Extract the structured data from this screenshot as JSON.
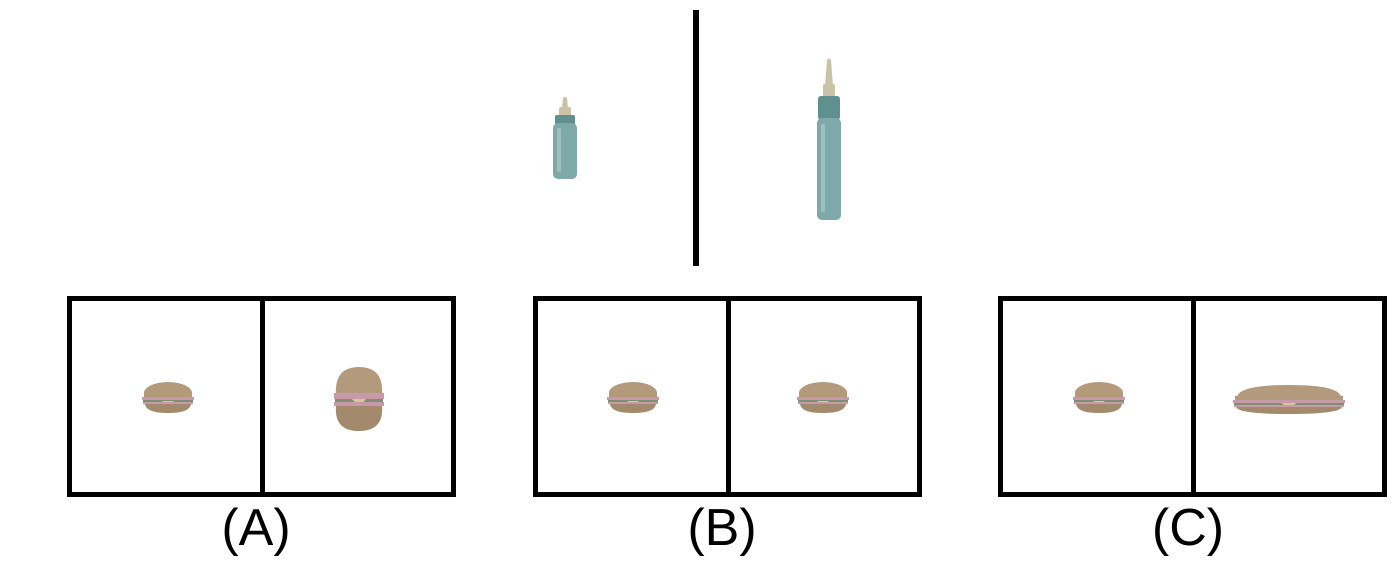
{
  "example": {
    "left_object": "baby-bottle-small",
    "right_object": "baby-bottle-tall-stretched"
  },
  "options": [
    {
      "label": "(A)",
      "left_object": "burger-normal",
      "right_object": "burger-tall"
    },
    {
      "label": "(B)",
      "left_object": "burger-normal",
      "right_object": "burger-normal"
    },
    {
      "label": "(C)",
      "left_object": "burger-normal",
      "right_object": "burger-wide"
    }
  ],
  "colors": {
    "bottle_body": "#7fa8a8",
    "bottle_cap": "#5f8f8f",
    "nipple": "#c9c2a6",
    "bun": "#b39a7c",
    "filling_pink": "#c89aa8",
    "filling_green": "#7d8f72",
    "cheese": "#d8c79a"
  }
}
